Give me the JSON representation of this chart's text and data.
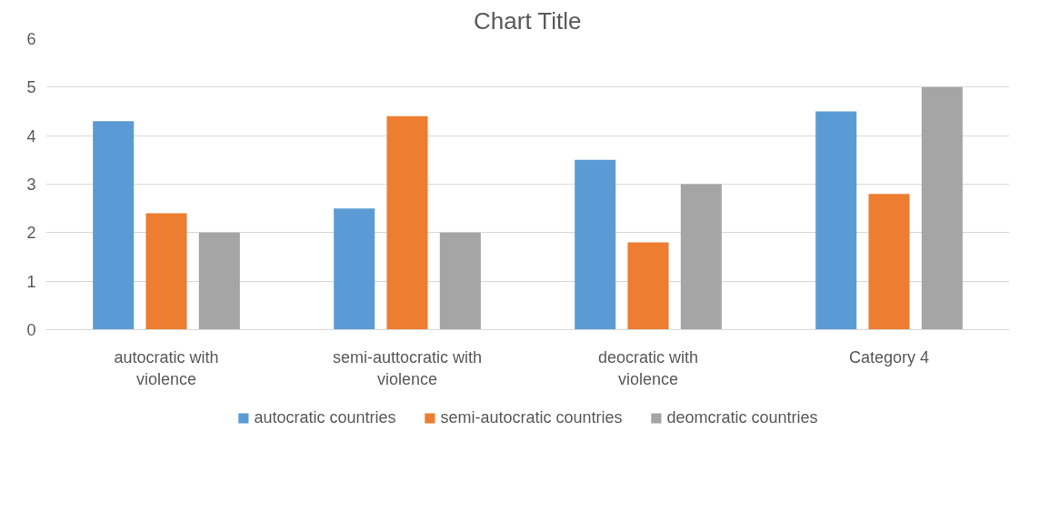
{
  "chart_data": {
    "type": "bar",
    "title": "Chart Title",
    "categories": [
      "autocratic with violence",
      "semi-auttocratic with violence",
      "deocratic with violence",
      "Category 4"
    ],
    "series": [
      {
        "name": "autocratic countries",
        "color": "#5b9bd5",
        "values": [
          4.3,
          2.5,
          3.5,
          4.5
        ]
      },
      {
        "name": "semi-autocratic countries",
        "color": "#ed7d31",
        "values": [
          2.4,
          4.4,
          1.8,
          2.8
        ]
      },
      {
        "name": "deomcratic countries",
        "color": "#a5a5a5",
        "values": [
          2,
          2,
          3,
          5
        ]
      }
    ],
    "ylim": [
      0,
      6
    ],
    "yticks": [
      0,
      1,
      2,
      3,
      4,
      5,
      6
    ],
    "grid": "y",
    "legend": "bottom"
  }
}
